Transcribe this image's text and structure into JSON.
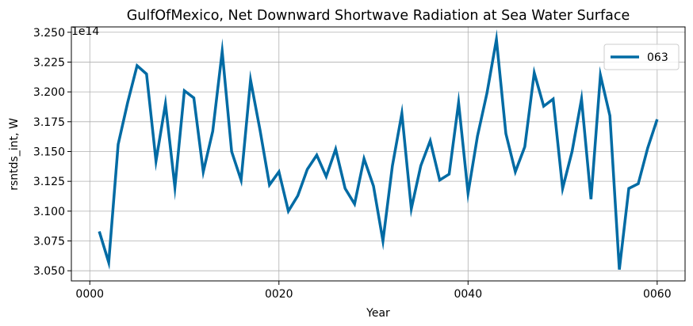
{
  "chart_data": {
    "type": "line",
    "title": "GulfOfMexico, Net Downward Shortwave Radiation at Sea Water Surface",
    "xlabel": "Year",
    "ylabel": "rsntds_int, W",
    "y_offset_label": "1e14",
    "y_scale": 100000000000000.0,
    "xlim": [
      -1.95,
      62.95
    ],
    "ylim": [
      3.0415,
      3.2545
    ],
    "x_ticks": [
      0,
      20,
      40,
      60
    ],
    "x_tick_labels": [
      "0000",
      "0020",
      "0040",
      "0060"
    ],
    "y_ticks": [
      3.05,
      3.075,
      3.1,
      3.125,
      3.15,
      3.175,
      3.2,
      3.225,
      3.25
    ],
    "y_tick_labels": [
      "3.050",
      "3.075",
      "3.100",
      "3.125",
      "3.150",
      "3.175",
      "3.200",
      "3.225",
      "3.250"
    ],
    "grid": true,
    "legend_position": "top-right",
    "series": [
      {
        "name": "063",
        "color": "#006ba4",
        "x": [
          1,
          2,
          3,
          4,
          5,
          6,
          7,
          8,
          9,
          10,
          11,
          12,
          13,
          14,
          15,
          16,
          17,
          18,
          19,
          20,
          21,
          22,
          23,
          24,
          25,
          26,
          27,
          28,
          29,
          30,
          31,
          32,
          33,
          34,
          35,
          36,
          37,
          38,
          39,
          40,
          41,
          42,
          43,
          44,
          45,
          46,
          47,
          48,
          49,
          50,
          51,
          52,
          53,
          54,
          55,
          56,
          57,
          58,
          59,
          60
        ],
        "values": [
          3.083,
          3.057,
          3.156,
          3.191,
          3.222,
          3.215,
          3.142,
          3.19,
          3.12,
          3.201,
          3.195,
          3.133,
          3.167,
          3.234,
          3.15,
          3.126,
          3.21,
          3.168,
          3.122,
          3.133,
          3.1,
          3.113,
          3.135,
          3.147,
          3.129,
          3.152,
          3.119,
          3.106,
          3.144,
          3.121,
          3.075,
          3.138,
          3.182,
          3.102,
          3.138,
          3.159,
          3.126,
          3.131,
          3.191,
          3.115,
          3.163,
          3.199,
          3.244,
          3.165,
          3.133,
          3.154,
          3.216,
          3.188,
          3.194,
          3.119,
          3.15,
          3.194,
          3.11,
          3.214,
          3.18,
          3.051,
          3.119,
          3.123,
          3.153,
          3.177
        ]
      }
    ]
  }
}
